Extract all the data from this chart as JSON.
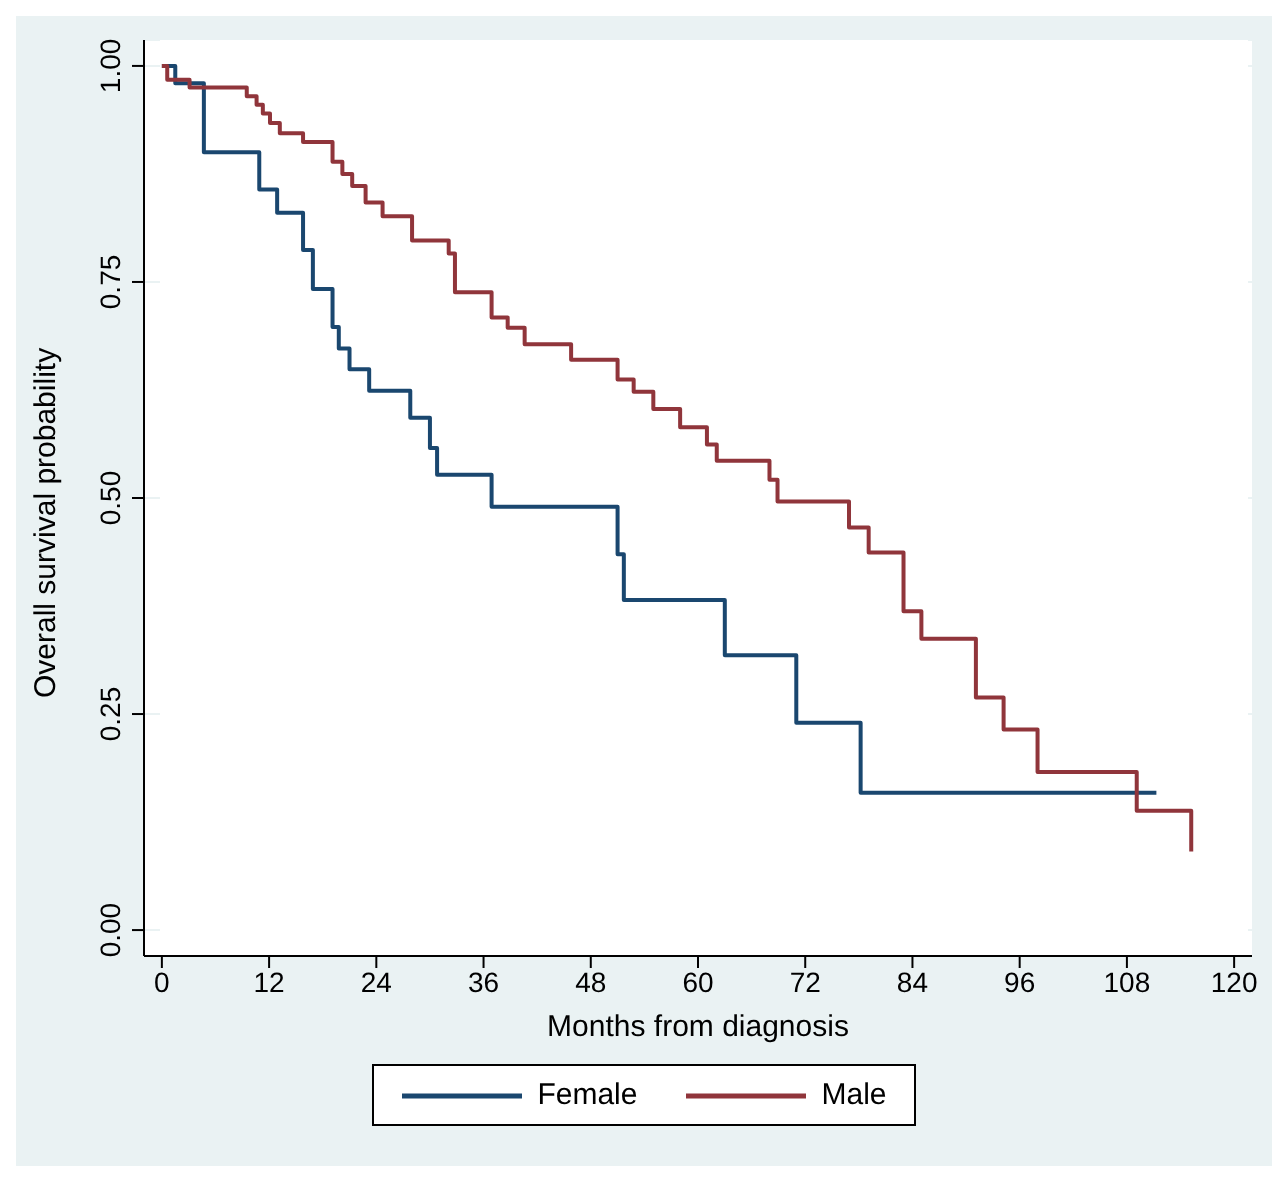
{
  "chart_data": {
    "type": "step",
    "xlabel": "Months from diagnosis",
    "ylabel": "Overall survival probability",
    "xlim": [
      -2,
      122
    ],
    "xticks": [
      0,
      12,
      24,
      36,
      48,
      60,
      72,
      84,
      96,
      108,
      120
    ],
    "ylim": [
      -0.03,
      1.03
    ],
    "yticks": [
      {
        "value": 0,
        "label": "0.00"
      },
      {
        "value": 0.25,
        "label": "0.25"
      },
      {
        "value": 0.5,
        "label": "0.50"
      },
      {
        "value": 0.75,
        "label": "0.75"
      },
      {
        "value": 1,
        "label": "1.00"
      }
    ],
    "grid": "y",
    "legend": "bottom",
    "line_style": "solid",
    "series": [
      {
        "name": "Female",
        "color": "#1a476f",
        "x": [
          0,
          1.5,
          4.7,
          10.9,
          12.9,
          15.8,
          16.9,
          19.1,
          19.8,
          21,
          23.2,
          27.8,
          30,
          30.8,
          36.9,
          51,
          51.7,
          63,
          71,
          78.2,
          111.3
        ],
        "values": [
          1,
          0.98,
          0.9,
          0.857,
          0.83,
          0.787,
          0.742,
          0.698,
          0.673,
          0.649,
          0.624,
          0.593,
          0.558,
          0.527,
          0.49,
          0.435,
          0.382,
          0.318,
          0.24,
          0.159,
          0.159
        ]
      },
      {
        "name": "Male",
        "color": "#90353b",
        "x": [
          0,
          0.6,
          3.1,
          9.5,
          10.6,
          11.3,
          12.1,
          13.2,
          15.8,
          19.1,
          20.2,
          21.3,
          22.8,
          24.7,
          28,
          32.1,
          32.8,
          36.9,
          38.7,
          40.6,
          45.8,
          51,
          52.8,
          55,
          58,
          61,
          62.1,
          68,
          68.9,
          76.9,
          79.1,
          83,
          85,
          91.1,
          94.2,
          98,
          109.1,
          115.2
        ],
        "values": [
          1,
          0.984,
          0.975,
          0.965,
          0.955,
          0.945,
          0.934,
          0.922,
          0.912,
          0.889,
          0.875,
          0.861,
          0.842,
          0.826,
          0.798,
          0.783,
          0.738,
          0.709,
          0.697,
          0.678,
          0.66,
          0.637,
          0.623,
          0.603,
          0.582,
          0.562,
          0.543,
          0.521,
          0.496,
          0.466,
          0.437,
          0.369,
          0.337,
          0.269,
          0.232,
          0.183,
          0.138,
          0.091
        ]
      }
    ]
  }
}
